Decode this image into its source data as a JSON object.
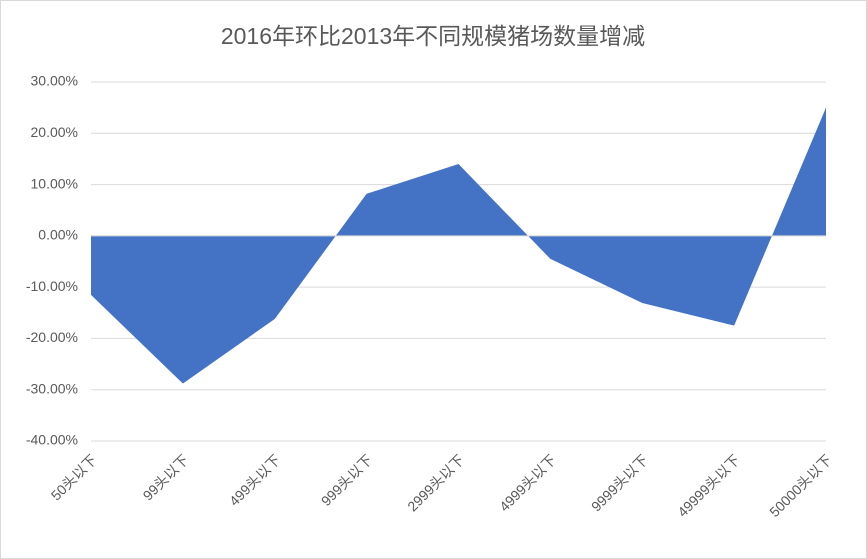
{
  "chart_data": {
    "type": "area",
    "title": "2016年环比2013年不同规模猪场数量增减",
    "categories": [
      "50头以下",
      "99头以下",
      "499头以下",
      "999头以下",
      "2999头以下",
      "4999头以下",
      "9999头以下",
      "49999头以下",
      "50000头以下"
    ],
    "values": [
      -11.5,
      -28.8,
      -16.2,
      8.2,
      14.0,
      -4.5,
      -13.1,
      -17.5,
      25.0
    ],
    "color": "#4472c4",
    "ylim": [
      -40,
      30
    ],
    "yticks": [
      {
        "value": -40,
        "label": "-40.00%"
      },
      {
        "value": -30,
        "label": "-30.00%"
      },
      {
        "value": -20,
        "label": "-20.00%"
      },
      {
        "value": -10,
        "label": "-10.00%"
      },
      {
        "value": 0,
        "label": "0.00%"
      },
      {
        "value": 10,
        "label": "10.00%"
      },
      {
        "value": 20,
        "label": "20.00%"
      },
      {
        "value": 30,
        "label": "30.00%"
      }
    ],
    "grid": true
  }
}
